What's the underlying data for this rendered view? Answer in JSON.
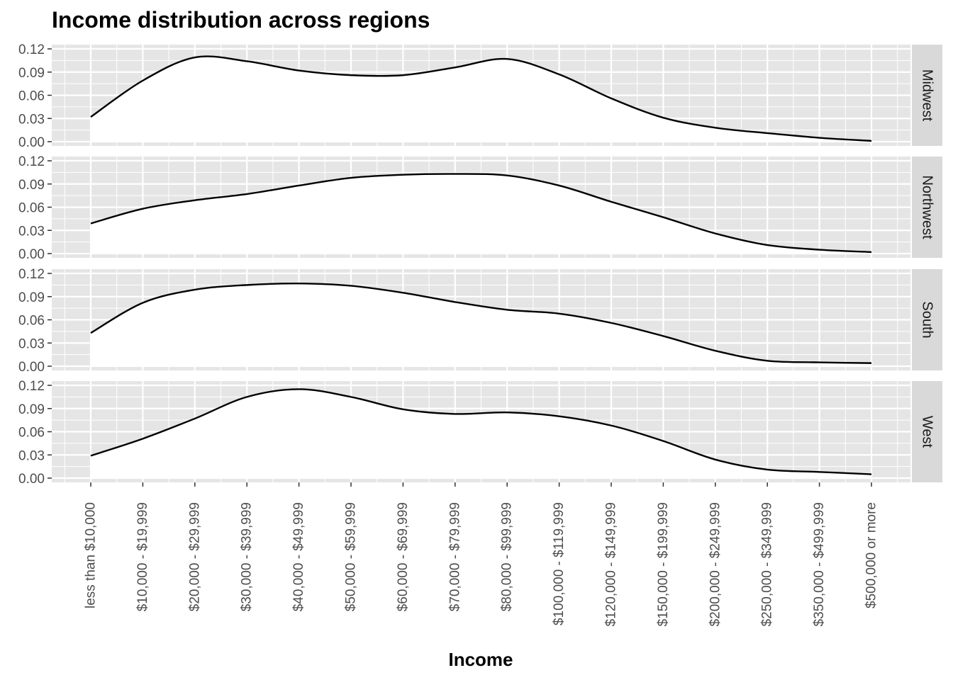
{
  "chart_data": {
    "type": "area",
    "title": "Income distribution across regions",
    "xlabel": "Income",
    "ylabel": "",
    "ylim": [
      0,
      0.12
    ],
    "y_ticks": [
      "0.00",
      "0.03",
      "0.06",
      "0.09",
      "0.12"
    ],
    "y_tick_values": [
      0,
      0.03,
      0.06,
      0.09,
      0.12
    ],
    "categories": [
      "less than $10,000",
      "$10,000 - $19,999",
      "$20,000 - $29,999",
      "$30,000 - $39,999",
      "$40,000 - $49,999",
      "$50,000 - $59,999",
      "$60,000 - $69,999",
      "$70,000 - $79,999",
      "$80,000 - $99,999",
      "$100,000 - $119,999",
      "$120,000 - $149,999",
      "$150,000 - $199,999",
      "$200,000 - $249,999",
      "$250,000 - $349,999",
      "$350,000 - $499,999",
      "$500,000 or more"
    ],
    "facets": [
      "Midwest",
      "Northwest",
      "South",
      "West"
    ],
    "series": [
      {
        "name": "Midwest",
        "values": [
          0.032,
          0.079,
          0.109,
          0.104,
          0.092,
          0.086,
          0.086,
          0.096,
          0.107,
          0.087,
          0.056,
          0.031,
          0.018,
          0.011,
          0.005,
          0.001
        ]
      },
      {
        "name": "Northwest",
        "values": [
          0.039,
          0.058,
          0.069,
          0.077,
          0.088,
          0.098,
          0.102,
          0.103,
          0.101,
          0.088,
          0.067,
          0.047,
          0.026,
          0.011,
          0.005,
          0.002
        ]
      },
      {
        "name": "South",
        "values": [
          0.043,
          0.082,
          0.099,
          0.105,
          0.107,
          0.104,
          0.095,
          0.083,
          0.073,
          0.068,
          0.056,
          0.039,
          0.02,
          0.007,
          0.005,
          0.004
        ]
      },
      {
        "name": "West",
        "values": [
          0.029,
          0.051,
          0.077,
          0.105,
          0.115,
          0.105,
          0.089,
          0.083,
          0.085,
          0.08,
          0.068,
          0.048,
          0.024,
          0.011,
          0.008,
          0.005
        ]
      }
    ],
    "grid": true,
    "legend": "none",
    "colors": {
      "panel": "#e5e5e5",
      "grid": "#ffffff",
      "strip": "#d9d9d9",
      "line": "#000000",
      "fill": "#ffffff"
    }
  }
}
